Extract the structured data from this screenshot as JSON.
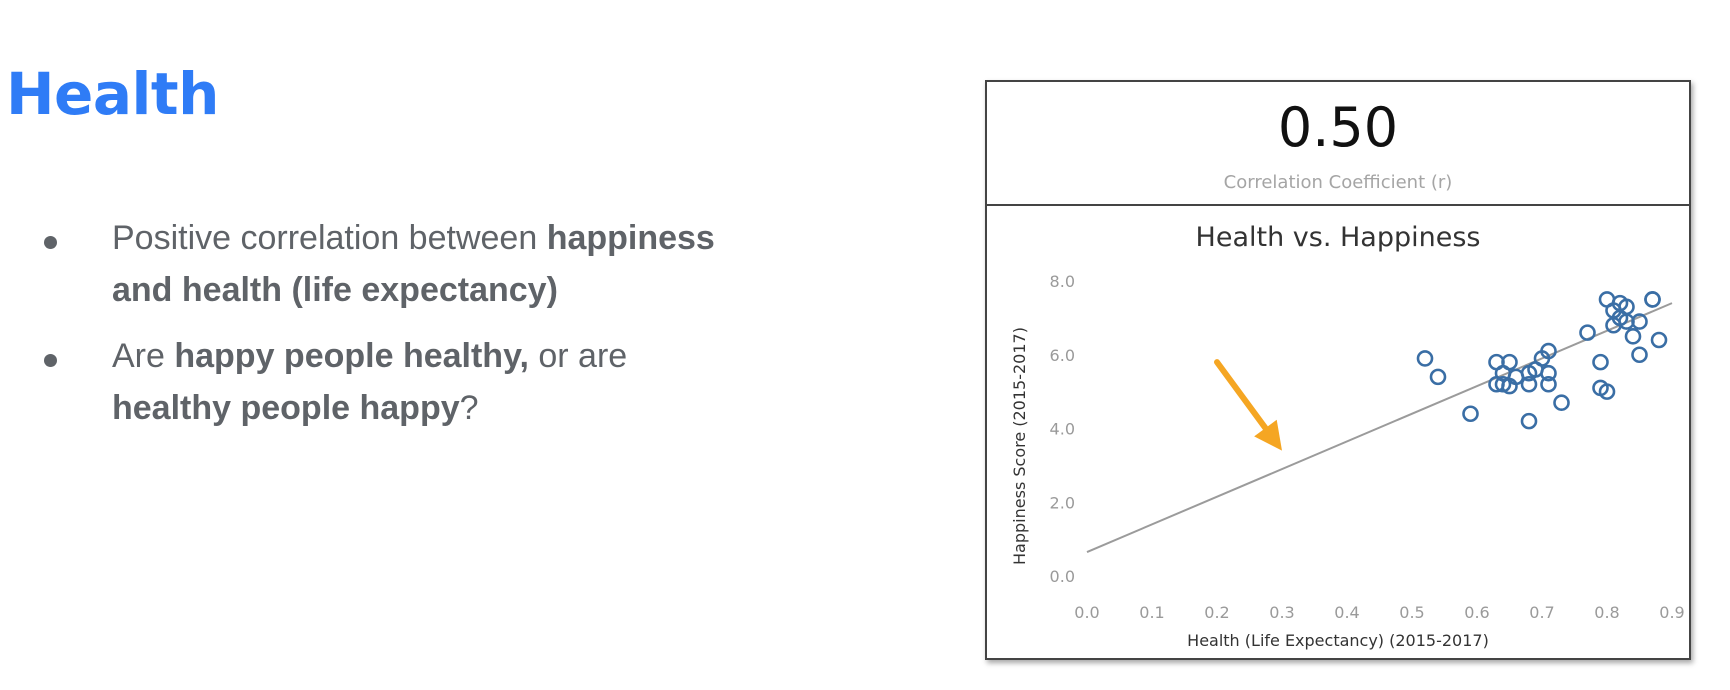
{
  "slide": {
    "title": "Health",
    "bullets": [
      {
        "parts": [
          {
            "text": "Positive correlation between ",
            "bold": false
          },
          {
            "text": "happiness and health (life expectancy)",
            "bold": true
          }
        ]
      },
      {
        "parts": [
          {
            "text": "Are ",
            "bold": false
          },
          {
            "text": "happy people healthy,",
            "bold": true
          },
          {
            "text": " or are ",
            "bold": false
          },
          {
            "text": "healthy people happy",
            "bold": true
          },
          {
            "text": "?",
            "bold": false
          }
        ]
      }
    ]
  },
  "kpi": {
    "value": "0.50",
    "label": "Correlation Coefficient (r)"
  },
  "colors": {
    "title": "#2f7cf6",
    "text": "#5f6368",
    "points": "#3a6ea5",
    "trend_line": "#9b9b9b",
    "arrow": "#f5a623"
  },
  "chart_data": {
    "type": "scatter",
    "title": "Health vs. Happiness",
    "xlabel": "Health (Life Expectancy) (2015-2017)",
    "ylabel": "Happiness Score (2015-2017)",
    "xlim": [
      0.0,
      0.9
    ],
    "ylim": [
      0.0,
      8.0
    ],
    "x_ticks": [
      "0.0",
      "0.1",
      "0.2",
      "0.3",
      "0.4",
      "0.5",
      "0.6",
      "0.7",
      "0.8",
      "0.9"
    ],
    "y_ticks": [
      "0.0",
      "2.0",
      "4.0",
      "6.0",
      "8.0"
    ],
    "grid": false,
    "points": [
      {
        "x": 0.52,
        "y": 5.9
      },
      {
        "x": 0.54,
        "y": 5.4
      },
      {
        "x": 0.59,
        "y": 4.4
      },
      {
        "x": 0.63,
        "y": 5.8
      },
      {
        "x": 0.64,
        "y": 5.5
      },
      {
        "x": 0.63,
        "y": 5.2
      },
      {
        "x": 0.65,
        "y": 5.8
      },
      {
        "x": 0.66,
        "y": 5.4
      },
      {
        "x": 0.64,
        "y": 5.2
      },
      {
        "x": 0.65,
        "y": 5.15
      },
      {
        "x": 0.68,
        "y": 5.5
      },
      {
        "x": 0.68,
        "y": 5.2
      },
      {
        "x": 0.69,
        "y": 5.6
      },
      {
        "x": 0.7,
        "y": 5.9
      },
      {
        "x": 0.71,
        "y": 6.1
      },
      {
        "x": 0.71,
        "y": 5.5
      },
      {
        "x": 0.71,
        "y": 5.2
      },
      {
        "x": 0.68,
        "y": 4.2
      },
      {
        "x": 0.73,
        "y": 4.7
      },
      {
        "x": 0.77,
        "y": 6.6
      },
      {
        "x": 0.79,
        "y": 5.8
      },
      {
        "x": 0.79,
        "y": 5.1
      },
      {
        "x": 0.8,
        "y": 5.0
      },
      {
        "x": 0.8,
        "y": 7.5
      },
      {
        "x": 0.81,
        "y": 7.2
      },
      {
        "x": 0.81,
        "y": 6.8
      },
      {
        "x": 0.82,
        "y": 7.4
      },
      {
        "x": 0.82,
        "y": 7.0
      },
      {
        "x": 0.83,
        "y": 6.9
      },
      {
        "x": 0.83,
        "y": 7.3
      },
      {
        "x": 0.84,
        "y": 6.5
      },
      {
        "x": 0.85,
        "y": 6.9
      },
      {
        "x": 0.85,
        "y": 6.0
      },
      {
        "x": 0.87,
        "y": 7.5
      },
      {
        "x": 0.87,
        "y": 7.5
      },
      {
        "x": 0.88,
        "y": 6.4
      }
    ],
    "trend_line": {
      "x": [
        0.0,
        0.9
      ],
      "y": [
        0.65,
        7.4
      ]
    },
    "annotation": {
      "type": "arrow",
      "from": [
        0.2,
        5.8
      ],
      "to": [
        0.3,
        3.4
      ]
    }
  }
}
